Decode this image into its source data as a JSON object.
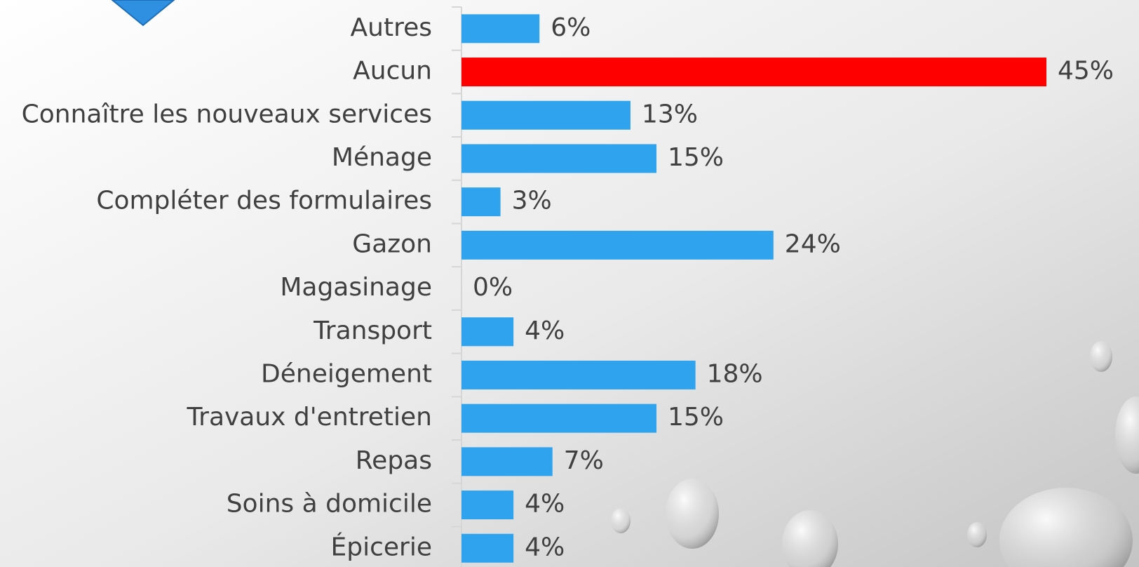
{
  "chart_data": {
    "type": "bar",
    "orientation": "horizontal",
    "categories": [
      "Autres",
      "Aucun",
      "Connaître les nouveaux services",
      "Ménage",
      "Compléter des formulaires",
      "Gazon",
      "Magasinage",
      "Transport",
      "Déneigement",
      "Travaux d'entretien",
      "Repas",
      "Soins à domicile",
      "Épicerie"
    ],
    "values": [
      6,
      45,
      13,
      15,
      3,
      24,
      0,
      4,
      18,
      15,
      7,
      4,
      4
    ],
    "value_labels": [
      "6%",
      "45%",
      "13%",
      "15%",
      "3%",
      "24%",
      "0%",
      "4%",
      "18%",
      "15%",
      "7%",
      "4%",
      "4%"
    ],
    "colors": [
      "#2fa3ee",
      "#ff0000",
      "#2fa3ee",
      "#2fa3ee",
      "#2fa3ee",
      "#2fa3ee",
      "#2fa3ee",
      "#2fa3ee",
      "#2fa3ee",
      "#2fa3ee",
      "#2fa3ee",
      "#2fa3ee",
      "#2fa3ee"
    ]
  }
}
